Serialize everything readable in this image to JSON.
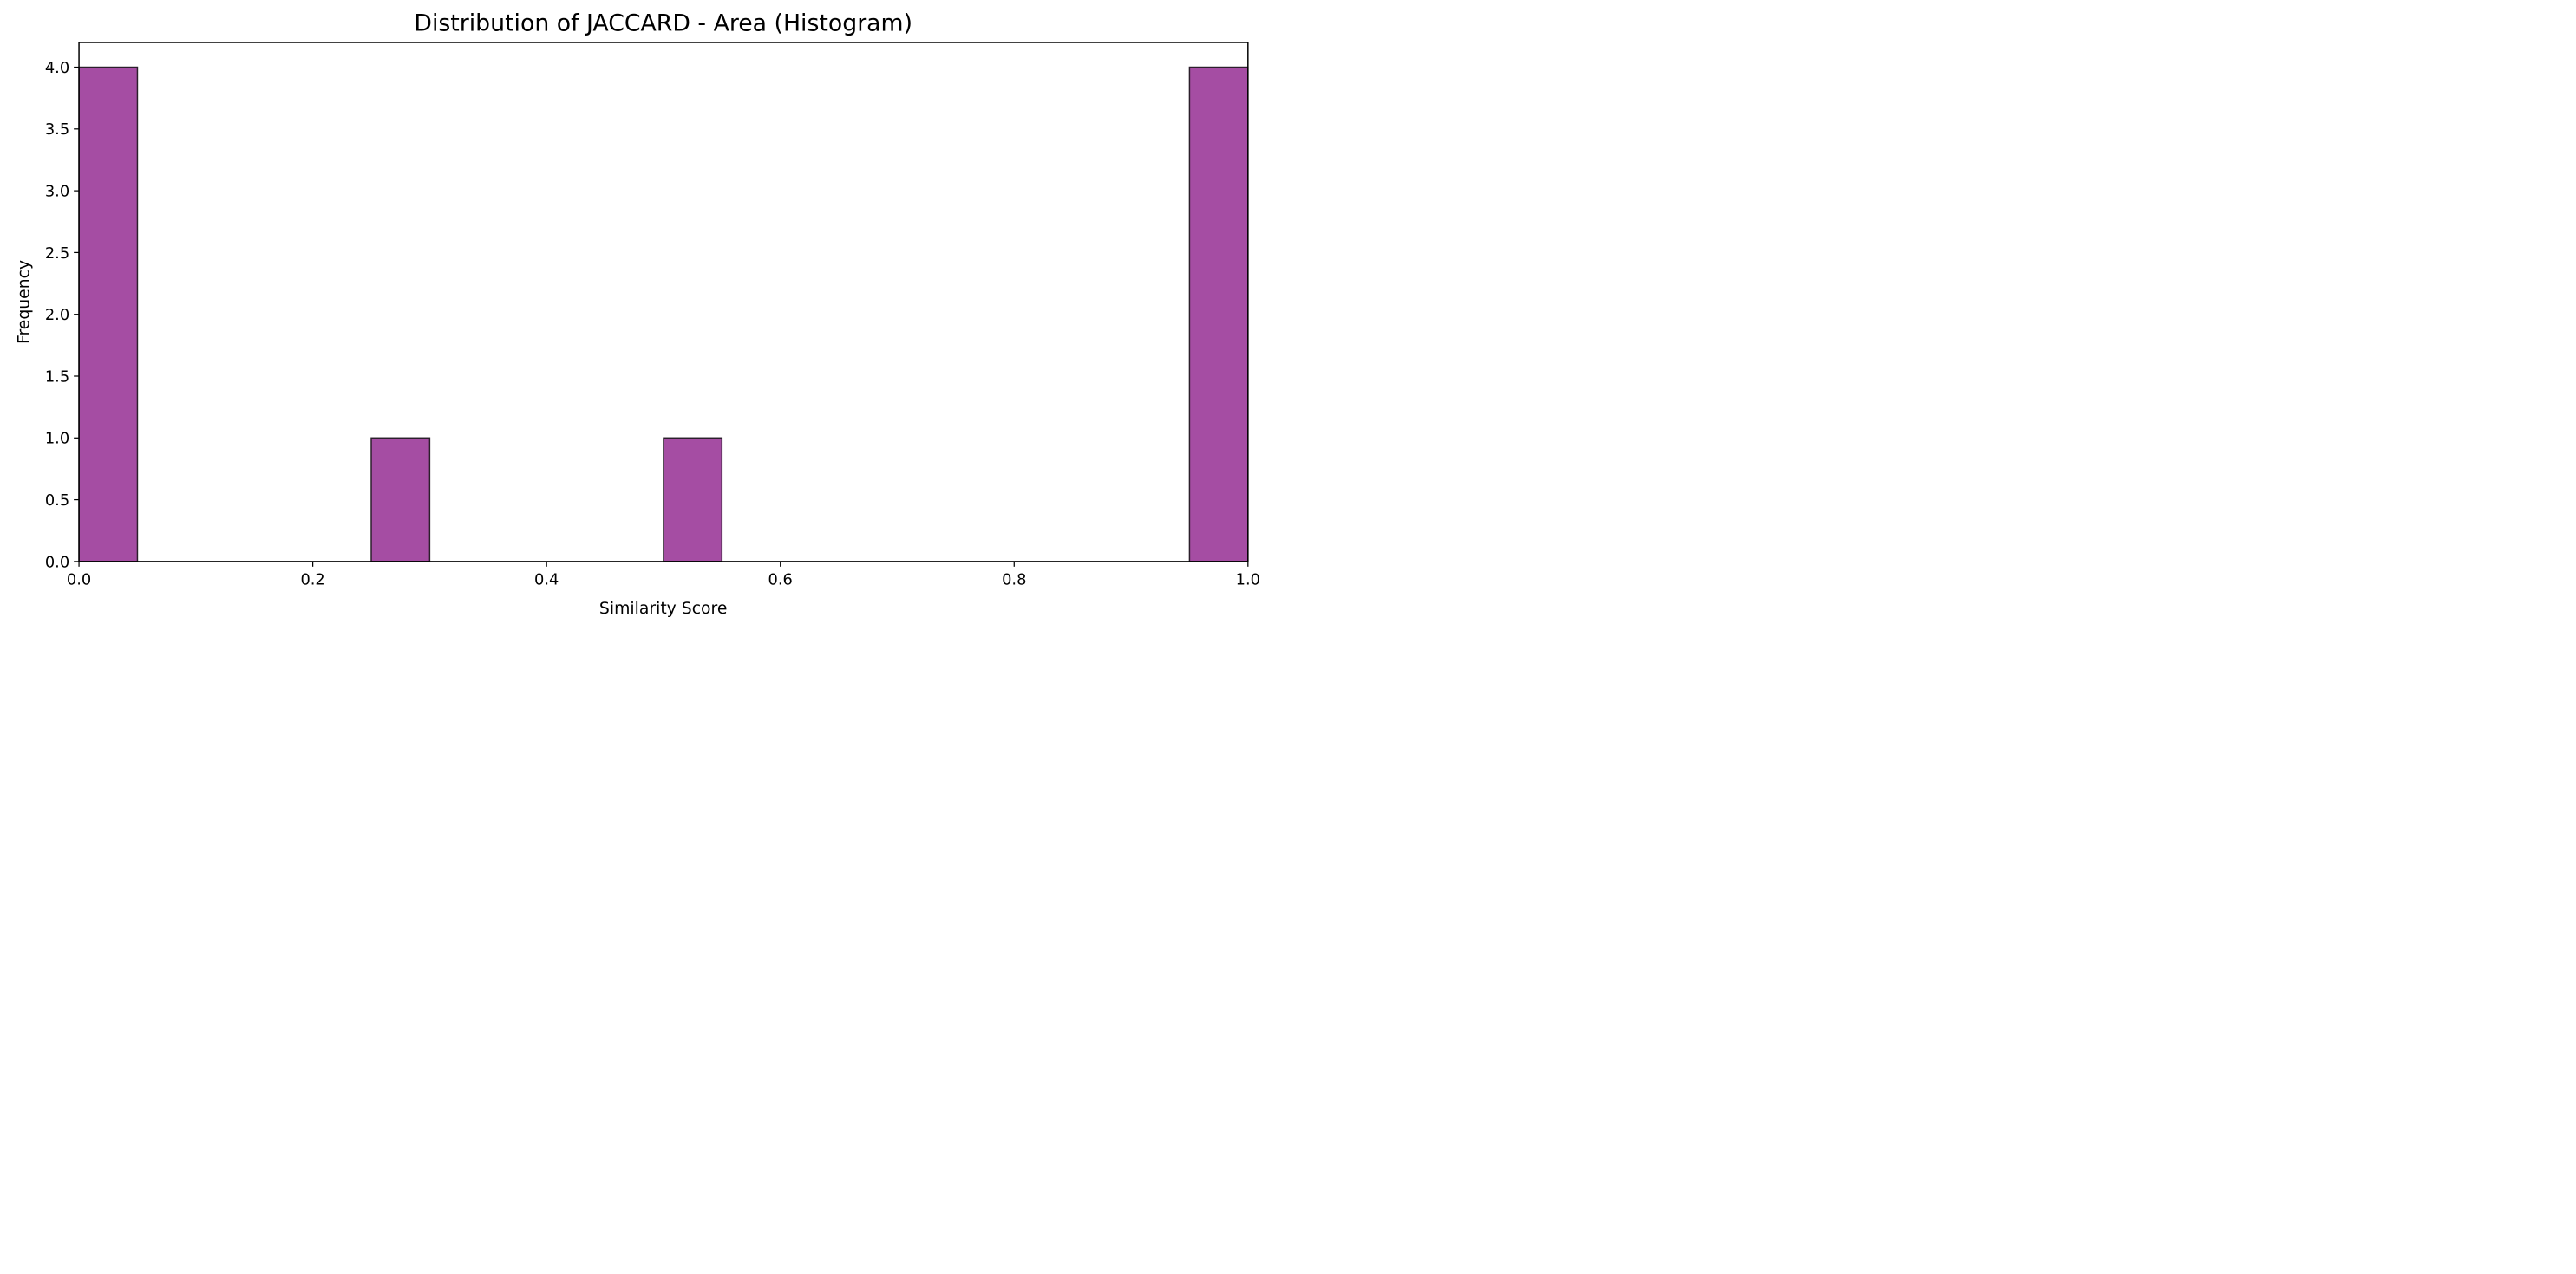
{
  "chart_data": {
    "type": "bar",
    "title": "Distribution of JACCARD - Area (Histogram)",
    "xlabel": "Similarity Score",
    "ylabel": "Frequency",
    "xlim": [
      0.0,
      1.0
    ],
    "ylim": [
      0.0,
      4.2
    ],
    "x_ticks": [
      0.0,
      0.2,
      0.4,
      0.6,
      0.8,
      1.0
    ],
    "x_tick_labels": [
      "0.0",
      "0.2",
      "0.4",
      "0.6",
      "0.8",
      "1.0"
    ],
    "y_ticks": [
      0.0,
      0.5,
      1.0,
      1.5,
      2.0,
      2.5,
      3.0,
      3.5,
      4.0
    ],
    "y_tick_labels": [
      "0.0",
      "0.5",
      "1.0",
      "1.5",
      "2.0",
      "2.5",
      "3.0",
      "3.5",
      "4.0"
    ],
    "bins": [
      {
        "x0": 0.0,
        "x1": 0.05,
        "count": 4
      },
      {
        "x0": 0.25,
        "x1": 0.3,
        "count": 1
      },
      {
        "x0": 0.5,
        "x1": 0.55,
        "count": 1
      },
      {
        "x0": 0.95,
        "x1": 1.0,
        "count": 4
      }
    ],
    "grid": false,
    "bar_color": "#a54da3",
    "edge_color": "#2b1f2b"
  }
}
